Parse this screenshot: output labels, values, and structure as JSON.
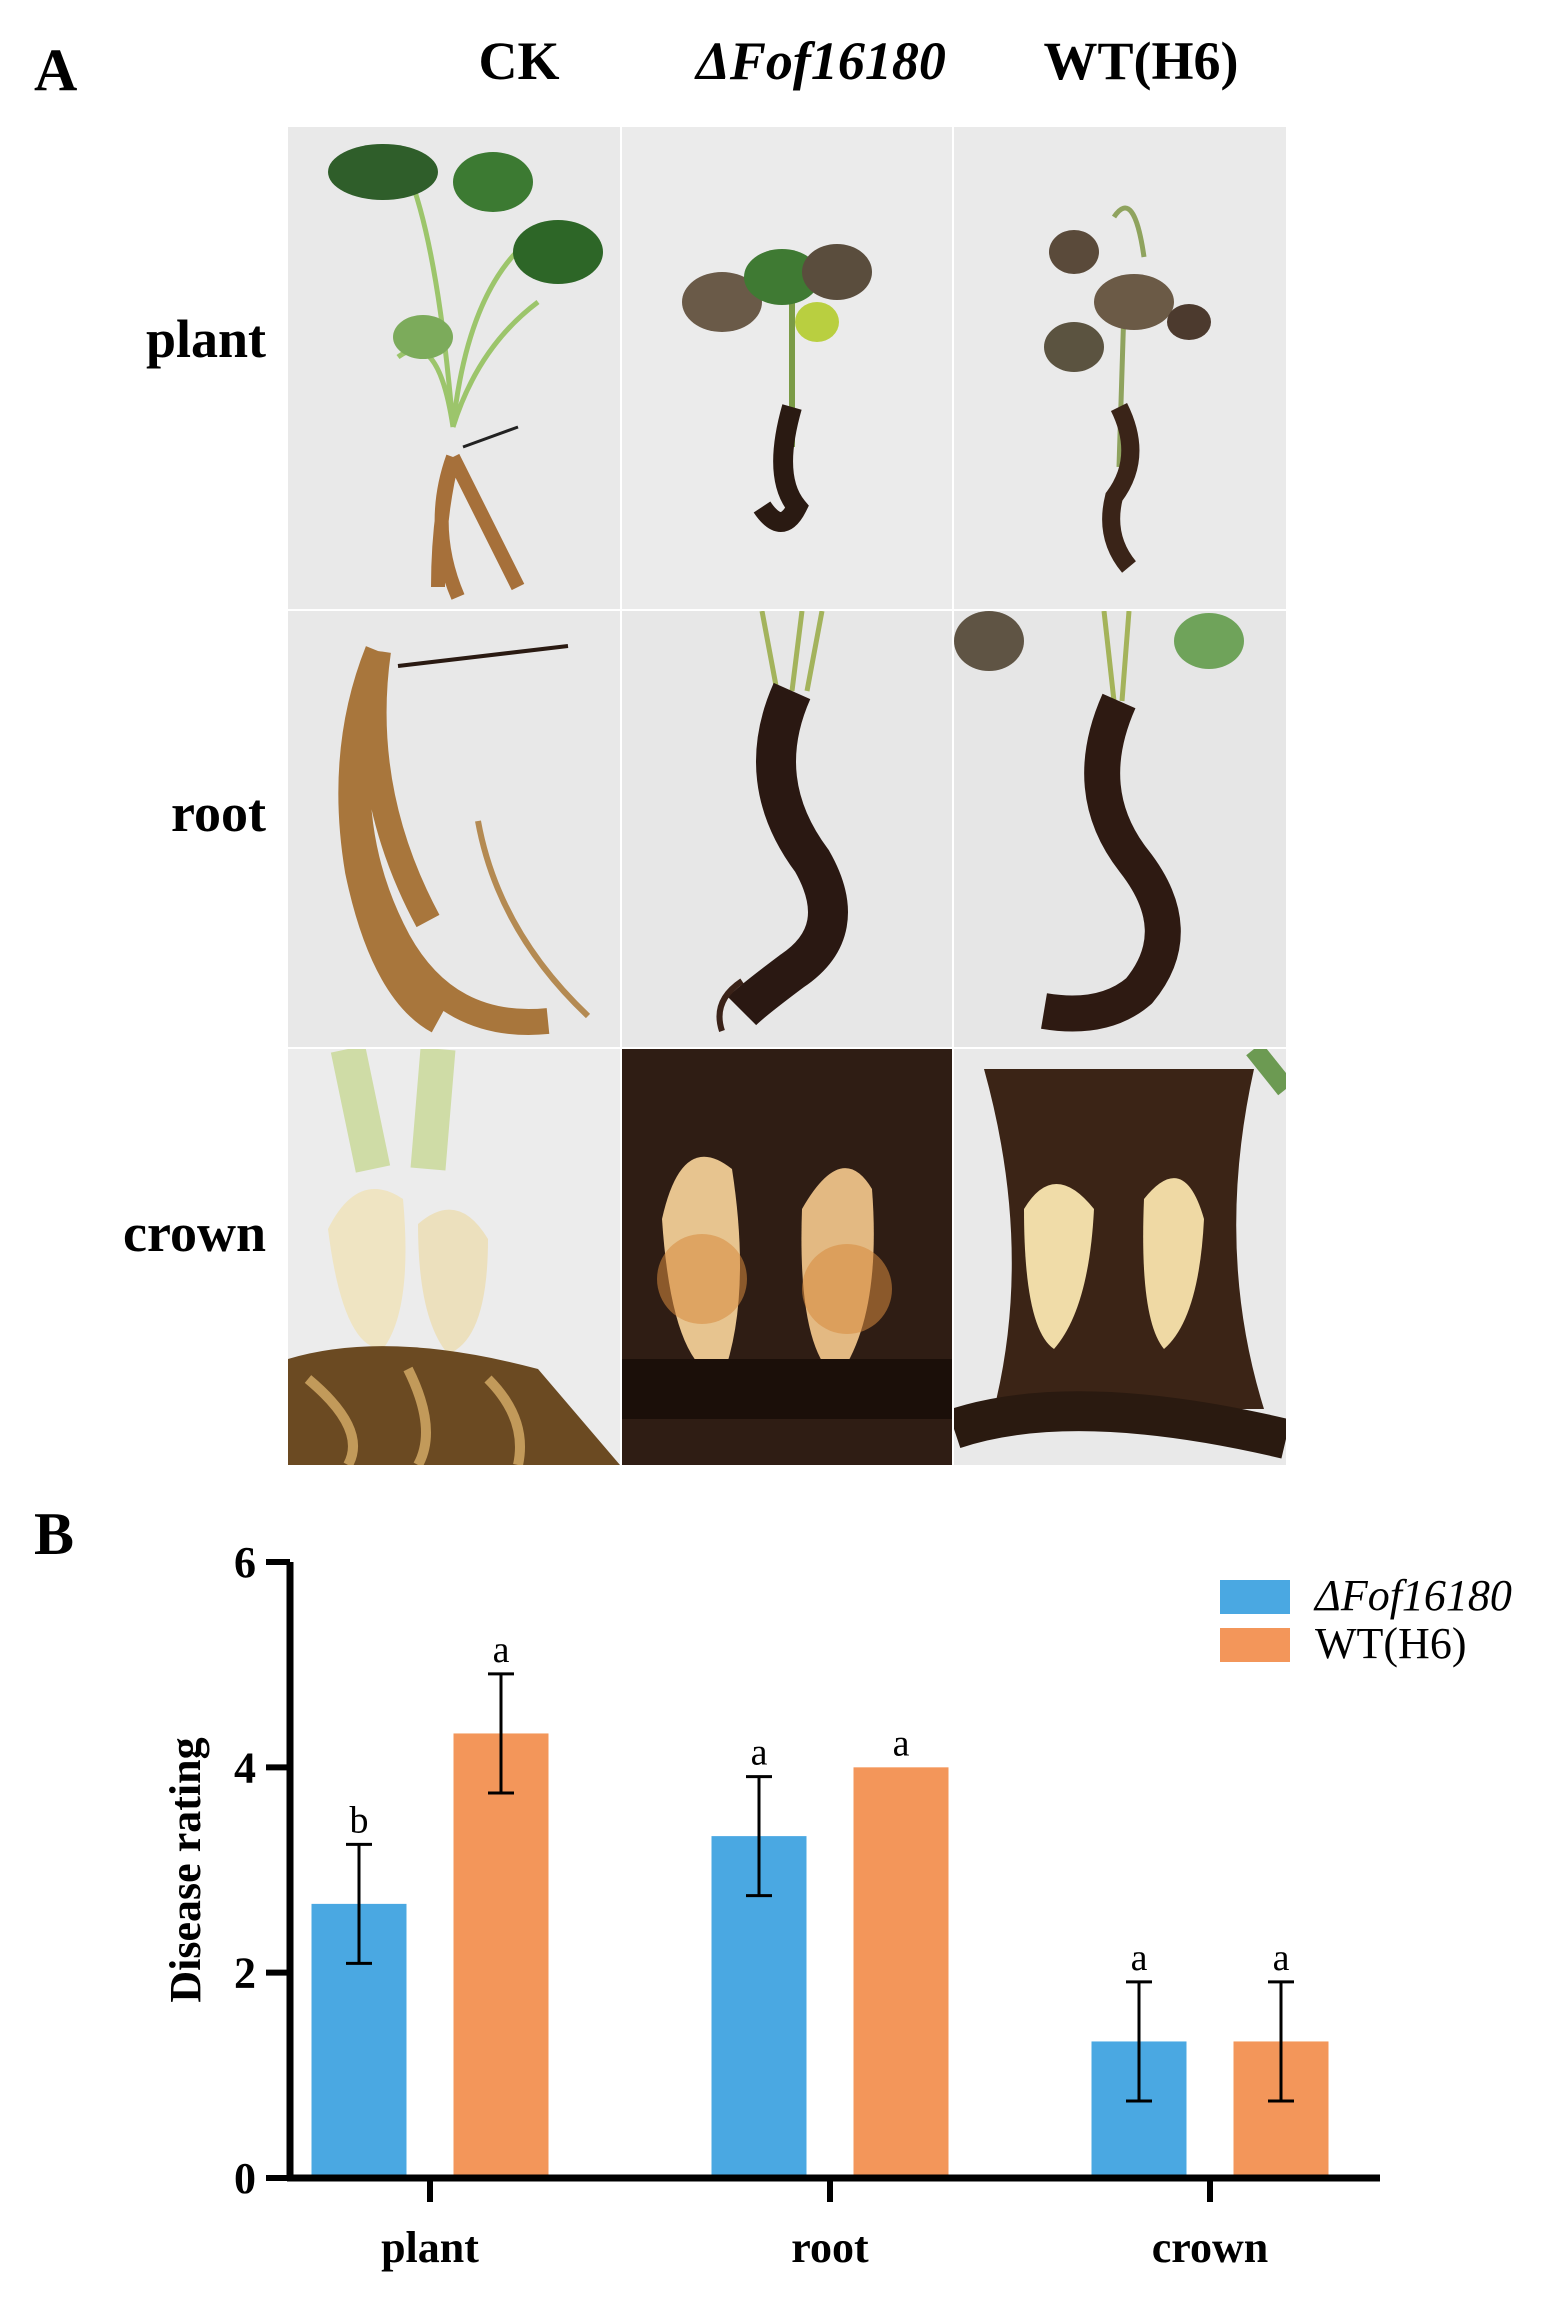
{
  "panels": {
    "a_label": "A",
    "b_label": "B"
  },
  "photo_panel": {
    "columns": [
      "CK",
      "ΔFof16180",
      "WT(H6)"
    ],
    "rows": [
      "plant",
      "root",
      "crown"
    ]
  },
  "colors": {
    "series1": "#4aa8e2",
    "series2": "#f3965a",
    "background_photo": "#e7e7e7"
  },
  "chart_data": {
    "type": "bar",
    "title": "",
    "xlabel": "",
    "ylabel": "Disease rating",
    "ylim": [
      0,
      6
    ],
    "yticks": [
      0,
      2,
      4,
      6
    ],
    "categories": [
      "plant",
      "root",
      "crown"
    ],
    "legend_position": "top-right",
    "series": [
      {
        "name": "ΔFof16180",
        "color": "#4aa8e2",
        "values": [
          2.67,
          3.33,
          1.33
        ],
        "errors": [
          0.58,
          0.58,
          0.58
        ],
        "significance": [
          "b",
          "a",
          "a"
        ]
      },
      {
        "name": "WT(H6)",
        "color": "#f3965a",
        "values": [
          4.33,
          4.0,
          1.33
        ],
        "errors": [
          0.58,
          0.0,
          0.58
        ],
        "significance": [
          "a",
          "a",
          "a"
        ]
      }
    ]
  }
}
